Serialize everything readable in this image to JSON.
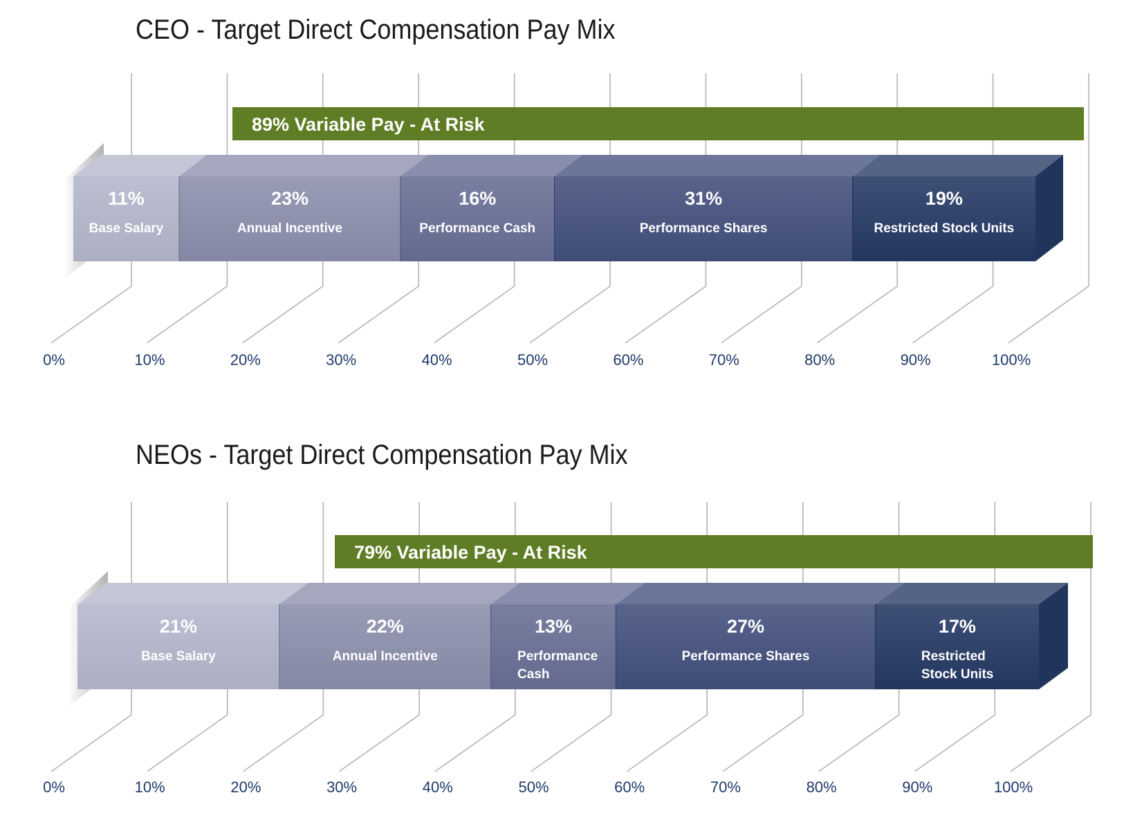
{
  "colors": {
    "variable_banner": "#5f7d24",
    "axis_lines": "#b3b3b3",
    "tick_labels": "#1f3a6b",
    "segment_base": "#b3b6cb",
    "segment_incentive": "#8a8eab",
    "segment_cash": "#676e94",
    "segment_shares": "#424f7c",
    "segment_rsu": "#243863"
  },
  "chart_data": [
    {
      "type": "bar",
      "stacked": true,
      "orientation": "horizontal",
      "title": "CEO - Target Direct Compensation Pay Mix",
      "x_ticks": [
        "0%",
        "10%",
        "20%",
        "30%",
        "40%",
        "50%",
        "60%",
        "70%",
        "80%",
        "90%",
        "100%"
      ],
      "xlim": [
        0,
        100
      ],
      "grid": true,
      "banner": {
        "text": "89% Variable Pay - At Risk",
        "value": 89
      },
      "segments": [
        {
          "value": 11,
          "value_label": "11%",
          "label": [
            "Base Salary"
          ],
          "color": "#b3b6cb"
        },
        {
          "value": 23,
          "value_label": "23%",
          "label": [
            "Annual Incentive"
          ],
          "color": "#8a8eab"
        },
        {
          "value": 16,
          "value_label": "16%",
          "label": [
            "Performance Cash"
          ],
          "color": "#676e94"
        },
        {
          "value": 31,
          "value_label": "31%",
          "label": [
            "Performance Shares"
          ],
          "color": "#424f7c"
        },
        {
          "value": 19,
          "value_label": "19%",
          "label": [
            "Restricted Stock Units"
          ],
          "color": "#243863"
        }
      ]
    },
    {
      "type": "bar",
      "stacked": true,
      "orientation": "horizontal",
      "title": "NEOs - Target Direct Compensation Pay Mix",
      "x_ticks": [
        "0%",
        "10%",
        "20%",
        "30%",
        "40%",
        "50%",
        "60%",
        "70%",
        "80%",
        "90%",
        "100%"
      ],
      "xlim": [
        0,
        100
      ],
      "grid": true,
      "banner": {
        "text": "79% Variable Pay - At Risk",
        "value": 79
      },
      "segments": [
        {
          "value": 21,
          "value_label": "21%",
          "label": [
            "Base Salary"
          ],
          "color": "#b3b6cb"
        },
        {
          "value": 22,
          "value_label": "22%",
          "label": [
            "Annual Incentive"
          ],
          "color": "#8a8eab"
        },
        {
          "value": 13,
          "value_label": "13%",
          "label": [
            "Performance",
            "Cash"
          ],
          "color": "#676e94"
        },
        {
          "value": 27,
          "value_label": "27%",
          "label": [
            "Performance Shares"
          ],
          "color": "#424f7c"
        },
        {
          "value": 17,
          "value_label": "17%",
          "label": [
            "Restricted",
            "Stock Units"
          ],
          "color": "#243863"
        }
      ]
    }
  ]
}
